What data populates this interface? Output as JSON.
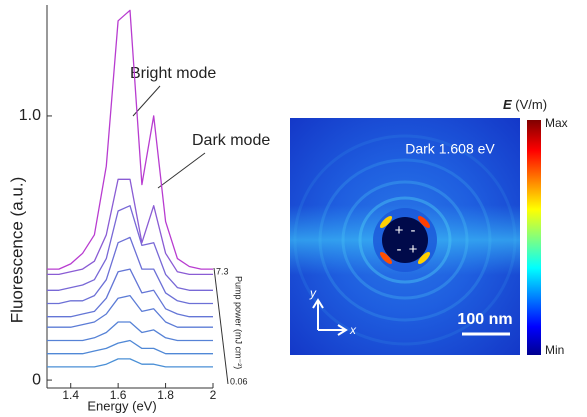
{
  "chart_data": [
    {
      "type": "line",
      "y_label": "Fluorescence (a.u.)",
      "x_label": "Energy (eV)",
      "annotations": [
        "Bright mode",
        "Dark mode"
      ],
      "z_label": "Pump power (mJ cm⁻²)",
      "z_ticks": [
        7.3,
        0.06
      ],
      "x": [
        1.3,
        1.35,
        1.4,
        1.45,
        1.5,
        1.55,
        1.6,
        1.65,
        1.7,
        1.75,
        1.8,
        1.85,
        1.9,
        1.95,
        2.0
      ],
      "xlim": [
        1.3,
        2.0
      ],
      "xticks": [
        1.4,
        1.6,
        1.8,
        2.0
      ],
      "ylim": [
        -0.03,
        1.42
      ],
      "yticks": [
        0,
        {
          "value": 1,
          "label": "1.0"
        }
      ],
      "series": [
        {
          "color": "#4a8fd6",
          "values": [
            0.05,
            0.05,
            0.05,
            0.05,
            0.05,
            0.06,
            0.08,
            0.08,
            0.06,
            0.06,
            0.05,
            0.05,
            0.05,
            0.05,
            0.05
          ]
        },
        {
          "color": "#5088d6",
          "values": [
            0.1,
            0.1,
            0.1,
            0.1,
            0.11,
            0.12,
            0.14,
            0.15,
            0.12,
            0.12,
            0.1,
            0.1,
            0.1,
            0.1,
            0.1
          ]
        },
        {
          "color": "#5682d6",
          "values": [
            0.15,
            0.15,
            0.15,
            0.15,
            0.16,
            0.18,
            0.22,
            0.22,
            0.18,
            0.19,
            0.16,
            0.15,
            0.15,
            0.15,
            0.15
          ]
        },
        {
          "color": "#5c7cd6",
          "values": [
            0.2,
            0.2,
            0.2,
            0.21,
            0.22,
            0.25,
            0.31,
            0.32,
            0.26,
            0.27,
            0.22,
            0.2,
            0.2,
            0.2,
            0.2
          ]
        },
        {
          "color": "#6476d6",
          "values": [
            0.24,
            0.24,
            0.24,
            0.25,
            0.26,
            0.31,
            0.41,
            0.42,
            0.33,
            0.34,
            0.27,
            0.25,
            0.24,
            0.24,
            0.24
          ]
        },
        {
          "color": "#6c70d6",
          "values": [
            0.29,
            0.29,
            0.3,
            0.3,
            0.32,
            0.38,
            0.52,
            0.54,
            0.42,
            0.42,
            0.33,
            0.3,
            0.29,
            0.29,
            0.29
          ]
        },
        {
          "color": "#7868d6",
          "values": [
            0.34,
            0.34,
            0.35,
            0.36,
            0.38,
            0.46,
            0.64,
            0.66,
            0.51,
            0.52,
            0.4,
            0.35,
            0.34,
            0.34,
            0.34
          ]
        },
        {
          "color": "#8a5cd4",
          "values": [
            0.4,
            0.4,
            0.41,
            0.42,
            0.45,
            0.55,
            0.76,
            0.76,
            0.52,
            0.66,
            0.48,
            0.41,
            0.4,
            0.4,
            0.4
          ]
        },
        {
          "color": "#b83cd0",
          "values": [
            0.42,
            0.42,
            0.44,
            0.48,
            0.55,
            0.81,
            1.36,
            1.4,
            0.74,
            1.0,
            0.6,
            0.46,
            0.43,
            0.42,
            0.42
          ]
        }
      ]
    },
    {
      "type": "field-map",
      "colorbar_symbol": "E",
      "colorbar_unit": "(V/m)",
      "colorbar_max": "Max",
      "colorbar_min": "Min",
      "label": "Dark 1.608 eV",
      "charges": [
        "+",
        "-",
        "-",
        "+"
      ],
      "axis_y": "y",
      "axis_x": "x",
      "scale_bar": "100 nm"
    }
  ]
}
